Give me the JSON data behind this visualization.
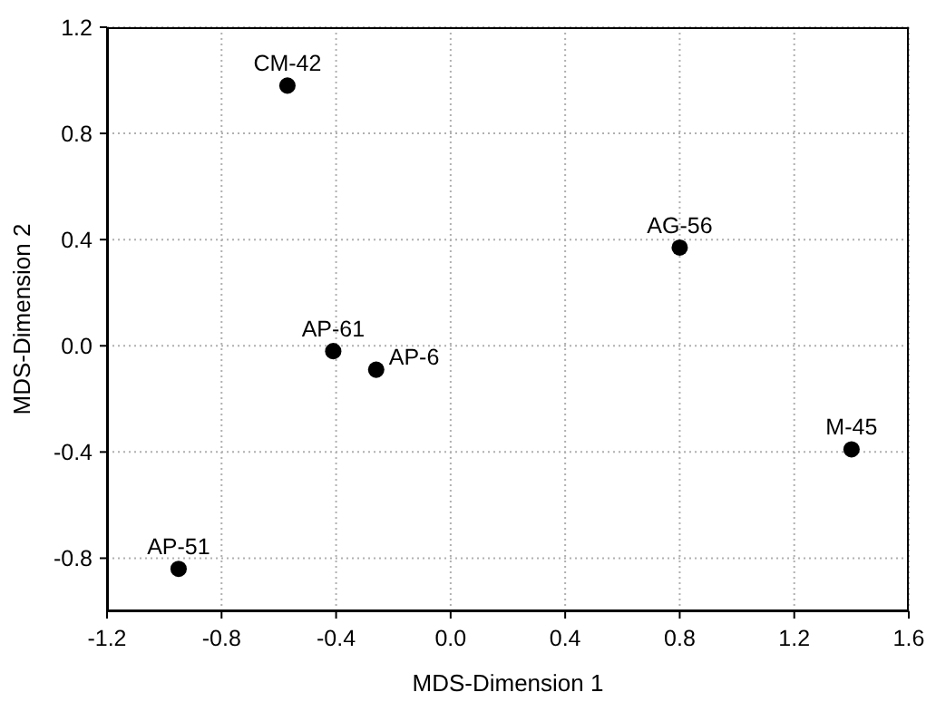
{
  "chart_data": {
    "type": "scatter",
    "xlabel": "MDS-Dimension 1",
    "ylabel": "MDS-Dimension 2",
    "x": [
      -0.57,
      0.8,
      -0.41,
      -0.26,
      1.4,
      -0.95
    ],
    "series": [
      {
        "color": "#000000",
        "values": [
          0.98,
          0.37,
          -0.02,
          -0.09,
          -0.39,
          -0.84
        ]
      }
    ],
    "marker": "circle",
    "grid": true,
    "legend": false,
    "xlim": [
      -1.2,
      1.6
    ],
    "ylim": [
      -1.0,
      1.2
    ],
    "xticks": [
      {
        "value": -1.2,
        "label": "-1.2"
      },
      {
        "value": -0.8,
        "label": "-0.8"
      },
      {
        "value": -0.4,
        "label": "-0.4"
      },
      {
        "value": 0,
        "label": "0.0"
      },
      {
        "value": 0.4,
        "label": "0.4"
      },
      {
        "value": 0.8,
        "label": "0.8"
      },
      {
        "value": 1.2,
        "label": "1.2"
      },
      {
        "value": 1.6,
        "label": "1.6"
      }
    ],
    "yticks": [
      {
        "value": -0.8,
        "label": "-0.8"
      },
      {
        "value": -0.4,
        "label": "-0.4"
      },
      {
        "value": 0,
        "label": "0.0"
      },
      {
        "value": 0.4,
        "label": "0.4"
      },
      {
        "value": 0.8,
        "label": "0.8"
      },
      {
        "value": 1.2,
        "label": "1.2"
      }
    ],
    "annotations": [
      {
        "text": "CM-42",
        "x": -0.57,
        "y": 0.98
      },
      {
        "text": "AG-56",
        "x": 0.8,
        "y": 0.37
      },
      {
        "text": "AP-61",
        "x": -0.41,
        "y": -0.02
      },
      {
        "text": "AP-6",
        "x": -0.26,
        "y": -0.09
      },
      {
        "text": "M-45",
        "x": 1.4,
        "y": -0.39
      },
      {
        "text": "AP-51",
        "x": -0.95,
        "y": -0.84
      }
    ]
  }
}
